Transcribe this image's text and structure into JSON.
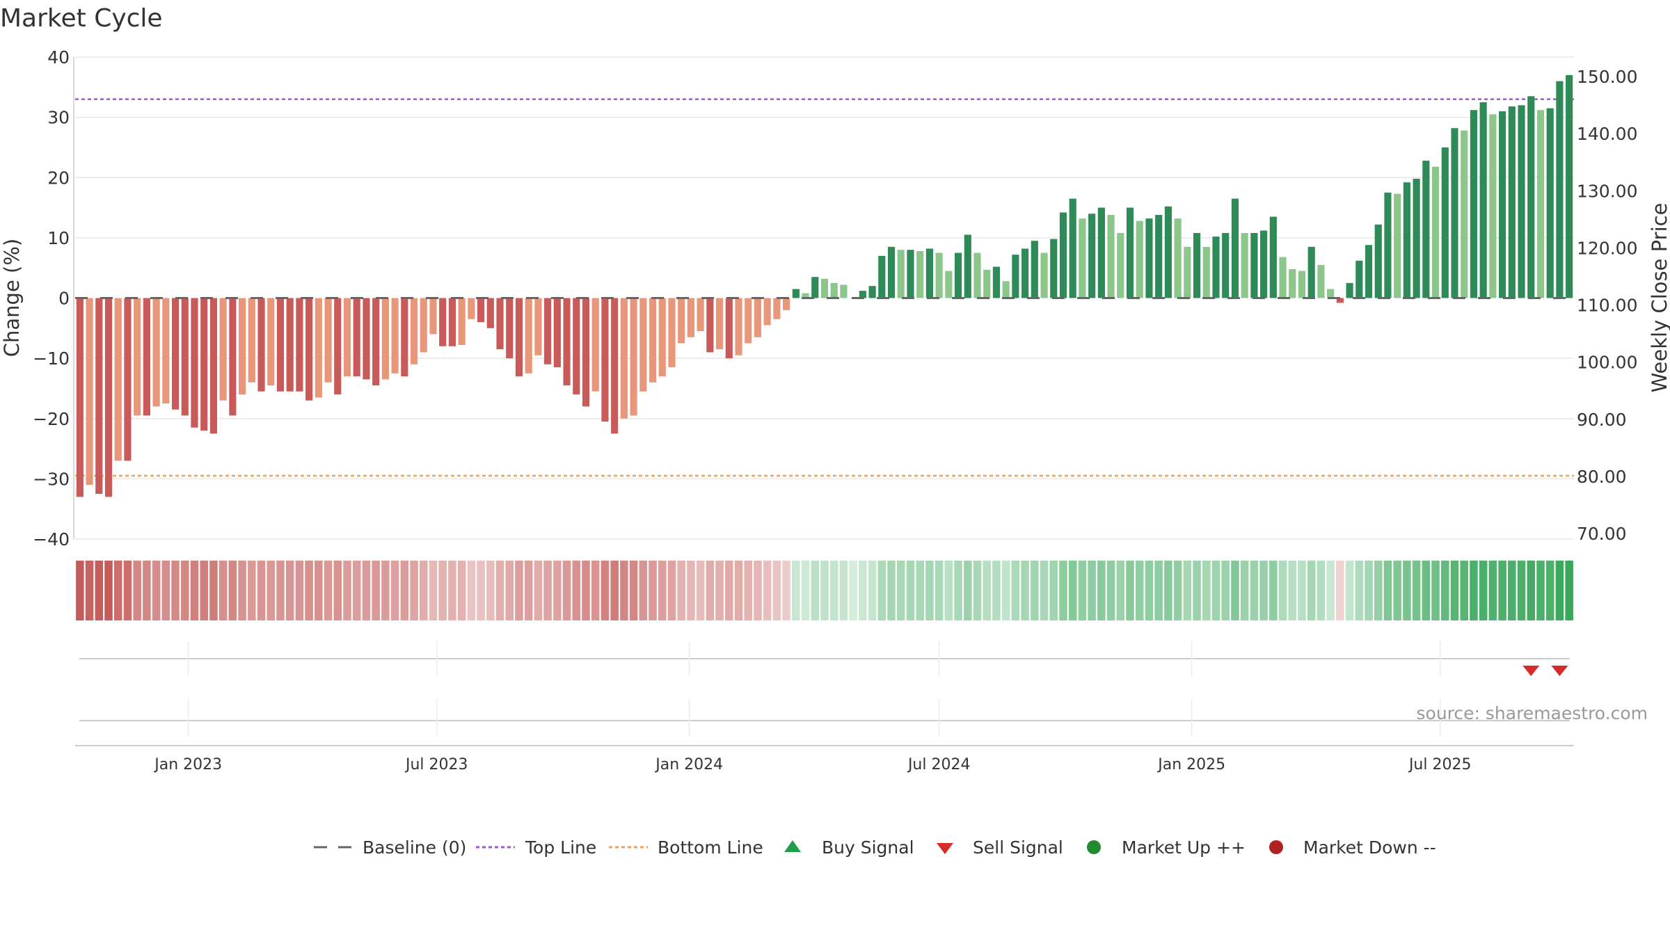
{
  "chart_data": {
    "type": "bar",
    "title": "Market Cycle",
    "ylabel": "Change (%)",
    "ylabel_right": "Weekly Close Price",
    "ylim": [
      -40,
      40
    ],
    "ylim_right": [
      70,
      150
    ],
    "y_ticks": [
      40,
      30,
      20,
      10,
      0,
      -10,
      -20,
      -30,
      -40
    ],
    "y_tick_labels": [
      "40",
      "30",
      "20",
      "10",
      "0",
      "−10",
      "−20",
      "−30",
      "−40"
    ],
    "y_right_ticks": [
      150,
      140,
      130,
      120,
      110,
      100,
      90,
      80,
      70
    ],
    "y_right_tick_labels": [
      "150.00",
      "140.00",
      "130.00",
      "120.00",
      "110.00",
      "100.00",
      "90.00",
      "80.00",
      "70.00"
    ],
    "top_line": 33,
    "bottom_line": -29.5,
    "baseline": 0,
    "x_date_labels": [
      {
        "date": "2023-01-01",
        "label": "Jan 2023"
      },
      {
        "date": "2023-07-01",
        "label": "Jul 2023"
      },
      {
        "date": "2024-01-01",
        "label": "Jan 2024"
      },
      {
        "date": "2024-07-01",
        "label": "Jul 2024"
      },
      {
        "date": "2025-01-01",
        "label": "Jan 2025"
      },
      {
        "date": "2025-07-01",
        "label": "Jul 2025"
      }
    ],
    "first_week": "2022-10-14",
    "last_week": "2025-10-03",
    "values": [
      -33,
      -31,
      -32.5,
      -33,
      -27,
      -27,
      -19.5,
      -19.5,
      -18,
      -17.5,
      -18.5,
      -19.5,
      -21.5,
      -22,
      -22.5,
      -17,
      -19.5,
      -16,
      -14,
      -15.5,
      -14.5,
      -15.5,
      -15.5,
      -15.5,
      -17,
      -16.5,
      -14,
      -16,
      -13,
      -13,
      -13.5,
      -14.5,
      -13.5,
      -12.5,
      -13,
      -11,
      -9,
      -6,
      -8,
      -8,
      -7.8,
      -3.5,
      -4,
      -5,
      -8.5,
      -10,
      -13,
      -12.5,
      -9.5,
      -11,
      -11.5,
      -14.5,
      -16,
      -18,
      -15.5,
      -20.5,
      -22.5,
      -20,
      -19.5,
      -15.5,
      -14,
      -13,
      -11.5,
      -7.5,
      -6.5,
      -5.5,
      -9,
      -8.5,
      -10,
      -9.5,
      -7.5,
      -6.5,
      -4.5,
      -3.5,
      -2,
      1.5,
      0.8,
      3.5,
      3.2,
      2.5,
      2.2,
      0,
      1.2,
      2,
      7,
      8.5,
      8,
      8,
      7.8,
      8.2,
      7.5,
      4.5,
      7.5,
      10.5,
      7.5,
      4.7,
      5.2,
      2.8,
      7.2,
      8.2,
      9.5,
      7.5,
      9.8,
      14.2,
      16.5,
      13.2,
      14,
      15,
      13.8,
      10.8,
      15,
      12.8,
      13.2,
      13.8,
      15.2,
      13.2,
      8.5,
      10.8,
      8.5,
      10.2,
      10.8,
      16.5,
      10.8,
      10.8,
      11.2,
      13.5,
      6.8,
      4.8,
      4.5,
      8.5,
      5.5,
      1.5,
      -0.8,
      2.5,
      6.2,
      8.8,
      12.2,
      17.5,
      17.3,
      19.2,
      19.8,
      22.8,
      21.8,
      25,
      28.2,
      27.8,
      31.2,
      32.5,
      30.5,
      31,
      31.8,
      32,
      33.5,
      31.2,
      31.5,
      36,
      37
    ],
    "bar_colors": {
      "negative_dark": "#c85a5a",
      "negative_light": "#e8977a",
      "positive_dark": "#2e8b57",
      "positive_light": "#8cc68a"
    },
    "strip_colors": {
      "negative": "#c0504d",
      "positive": "#3aa75a"
    },
    "sell_signal_weeks": [
      152,
      155
    ],
    "source": "source: sharemaestro.com",
    "legend": {
      "baseline": "Baseline (0)",
      "top_line": "Top Line",
      "bottom_line": "Bottom Line",
      "buy_signal": "Buy Signal",
      "sell_signal": "Sell Signal",
      "market_up": "Market Up ++",
      "market_down": "Market Down --"
    },
    "line_colors": {
      "baseline": "#666666",
      "top_line": "#9b59d0",
      "bottom_line": "#f0a05a",
      "buy_signal": "#1e9e4a",
      "sell_signal": "#d62b2b",
      "market_up": "#1f8a2e",
      "market_down": "#b02222"
    }
  }
}
